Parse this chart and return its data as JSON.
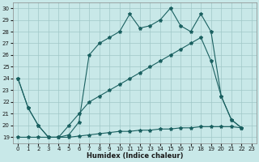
{
  "xlabel": "Humidex (Indice chaleur)",
  "bg_color": "#c8e8e8",
  "grid_color": "#a0c8c8",
  "line_color": "#1a6060",
  "xlim": [
    -0.5,
    23.5
  ],
  "ylim": [
    18.5,
    30.5
  ],
  "xticks": [
    0,
    1,
    2,
    3,
    4,
    5,
    6,
    7,
    8,
    9,
    10,
    11,
    12,
    13,
    14,
    15,
    16,
    17,
    18,
    19,
    20,
    21,
    22,
    23
  ],
  "yticks": [
    19,
    20,
    21,
    22,
    23,
    24,
    25,
    26,
    27,
    28,
    29,
    30
  ],
  "series1_x": [
    0,
    1,
    2,
    3,
    4,
    5,
    6,
    7,
    8,
    9,
    10,
    11,
    12,
    13,
    14,
    15,
    16,
    17,
    18,
    19,
    20,
    21,
    22
  ],
  "series1_y": [
    24.0,
    21.5,
    20.0,
    19.0,
    19.0,
    19.2,
    20.3,
    26.0,
    27.0,
    27.5,
    28.0,
    29.5,
    28.3,
    28.5,
    29.0,
    30.0,
    28.5,
    28.0,
    29.5,
    28.0,
    22.5,
    20.5,
    19.8
  ],
  "series2_x": [
    0,
    1,
    2,
    3,
    4,
    5,
    6,
    7,
    8,
    9,
    10,
    11,
    12,
    13,
    14,
    15,
    16,
    17,
    18,
    19,
    20,
    21,
    22
  ],
  "series2_y": [
    24.0,
    21.5,
    20.0,
    19.0,
    19.0,
    20.0,
    21.0,
    22.0,
    22.5,
    23.0,
    23.5,
    24.0,
    24.5,
    25.0,
    25.5,
    26.0,
    26.5,
    27.0,
    27.5,
    25.5,
    22.5,
    20.5,
    19.8
  ],
  "series3_x": [
    0,
    1,
    2,
    3,
    4,
    5,
    6,
    7,
    8,
    9,
    10,
    11,
    12,
    13,
    14,
    15,
    16,
    17,
    18,
    19,
    20,
    21,
    22
  ],
  "series3_y": [
    19.0,
    19.0,
    19.0,
    19.0,
    19.0,
    19.0,
    19.1,
    19.2,
    19.3,
    19.4,
    19.5,
    19.5,
    19.6,
    19.6,
    19.7,
    19.7,
    19.8,
    19.8,
    19.9,
    19.9,
    19.9,
    19.9,
    19.8
  ]
}
